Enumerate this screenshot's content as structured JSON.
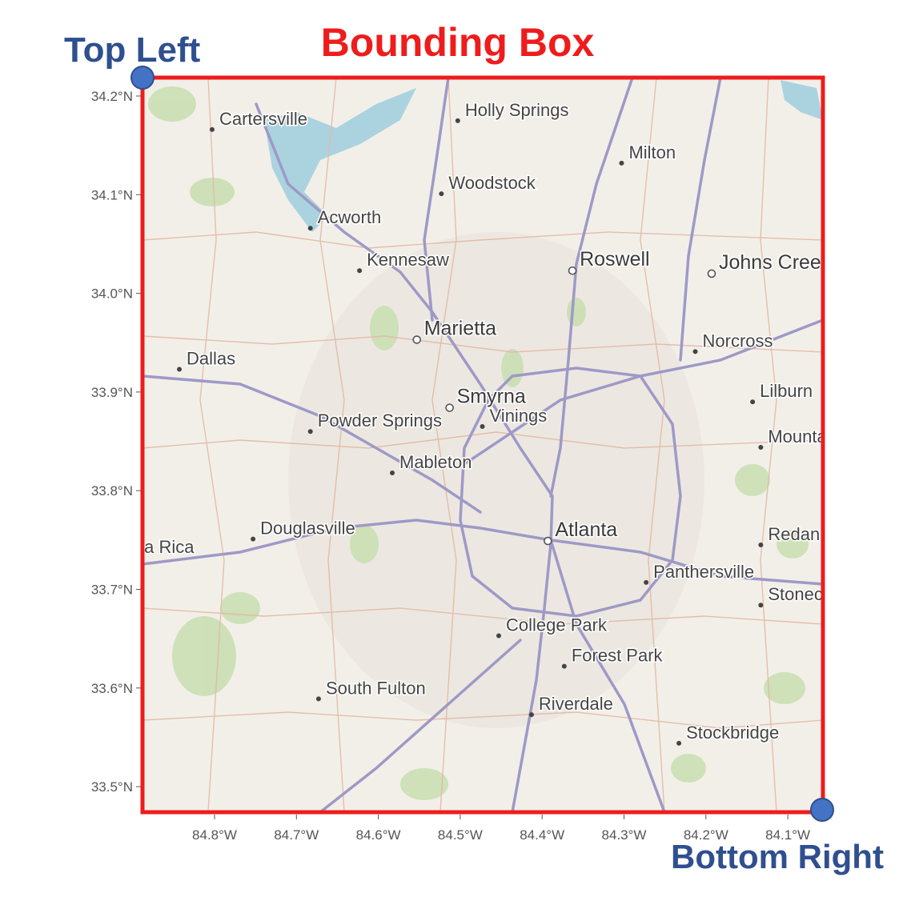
{
  "title": "Bounding Box",
  "corners": {
    "top_left": "Top Left",
    "bottom_right": "Bottom Right"
  },
  "colors": {
    "box": "#ee1c1c",
    "corner_dot": "#4472c4",
    "corner_text": "#2f4f8f"
  },
  "latitude_ticks": [
    "34.2°N",
    "34.1°N",
    "34.0°N",
    "33.9°N",
    "33.8°N",
    "33.7°N",
    "33.6°N",
    "33.5°N"
  ],
  "longitude_ticks": [
    "84.8°W",
    "84.7°W",
    "84.6°W",
    "84.5°W",
    "84.4°W",
    "84.3°W",
    "84.2°W",
    "84.1°W"
  ],
  "places": [
    {
      "name": "Cartersville",
      "lat": 34.166,
      "lon": -84.8,
      "size": "city"
    },
    {
      "name": "Holly Springs",
      "lat": 34.175,
      "lon": -84.5,
      "size": "city"
    },
    {
      "name": "Milton",
      "lat": 34.132,
      "lon": -84.3,
      "size": "city"
    },
    {
      "name": "Woodstock",
      "lat": 34.101,
      "lon": -84.52,
      "size": "city"
    },
    {
      "name": "Acworth",
      "lat": 34.066,
      "lon": -84.68,
      "size": "city"
    },
    {
      "name": "Kennesaw",
      "lat": 34.023,
      "lon": -84.62,
      "size": "city"
    },
    {
      "name": "Roswell",
      "lat": 34.023,
      "lon": -84.36,
      "size": "big"
    },
    {
      "name": "Johns Creek",
      "lat": 34.02,
      "lon": -84.19,
      "size": "big"
    },
    {
      "name": "Marietta",
      "lat": 33.953,
      "lon": -84.55,
      "size": "big"
    },
    {
      "name": "Norcross",
      "lat": 33.941,
      "lon": -84.21,
      "size": "city"
    },
    {
      "name": "Dallas",
      "lat": 33.923,
      "lon": -84.84,
      "size": "city"
    },
    {
      "name": "Lilburn",
      "lat": 33.89,
      "lon": -84.14,
      "size": "city"
    },
    {
      "name": "Smyrna",
      "lat": 33.884,
      "lon": -84.51,
      "size": "big"
    },
    {
      "name": "Vinings",
      "lat": 33.865,
      "lon": -84.47,
      "size": "city"
    },
    {
      "name": "Powder Springs",
      "lat": 33.86,
      "lon": -84.68,
      "size": "city"
    },
    {
      "name": "Mableton",
      "lat": 33.818,
      "lon": -84.58,
      "size": "city"
    },
    {
      "name": "Mountain Park",
      "lat": 33.844,
      "lon": -84.13,
      "size": "city"
    },
    {
      "name": "Douglasville",
      "lat": 33.751,
      "lon": -84.75,
      "size": "city"
    },
    {
      "name": "Atlanta",
      "lat": 33.749,
      "lon": -84.39,
      "size": "big"
    },
    {
      "name": "Redan",
      "lat": 33.745,
      "lon": -84.13,
      "size": "city"
    },
    {
      "name": "Villa Rica",
      "lat": 33.732,
      "lon": -84.92,
      "size": "city"
    },
    {
      "name": "Panthersville",
      "lat": 33.707,
      "lon": -84.27,
      "size": "city"
    },
    {
      "name": "Stonecrest",
      "lat": 33.684,
      "lon": -84.13,
      "size": "city"
    },
    {
      "name": "College Park",
      "lat": 33.653,
      "lon": -84.45,
      "size": "city"
    },
    {
      "name": "Forest Park",
      "lat": 33.622,
      "lon": -84.37,
      "size": "city"
    },
    {
      "name": "South Fulton",
      "lat": 33.589,
      "lon": -84.67,
      "size": "city"
    },
    {
      "name": "Riverdale",
      "lat": 33.573,
      "lon": -84.41,
      "size": "city"
    },
    {
      "name": "Stockbridge",
      "lat": 33.544,
      "lon": -84.23,
      "size": "city"
    }
  ]
}
